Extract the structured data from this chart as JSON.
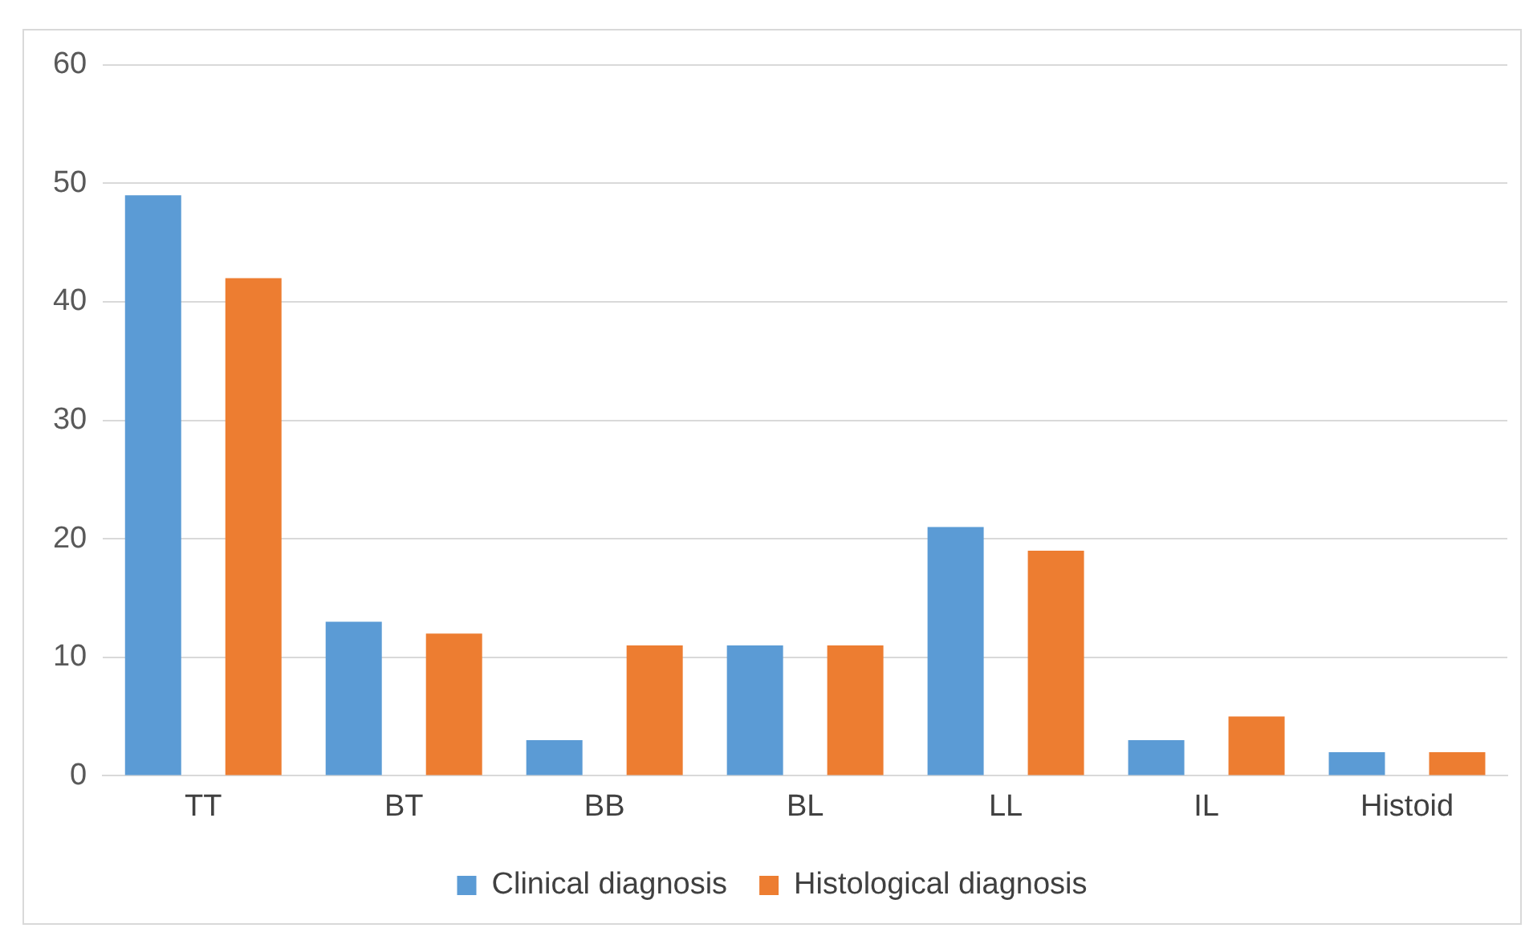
{
  "chart_data": {
    "type": "bar",
    "categories": [
      "TT",
      "BT",
      "BB",
      "BL",
      "LL",
      "IL",
      "Histoid"
    ],
    "series": [
      {
        "name": "Clinical diagnosis",
        "color": "#5b9bd5",
        "values": [
          49,
          13,
          3,
          11,
          21,
          3,
          2
        ]
      },
      {
        "name": "Histological diagnosis",
        "color": "#ed7d31",
        "values": [
          42,
          12,
          11,
          11,
          19,
          5,
          2
        ]
      }
    ],
    "ylim": [
      0,
      60
    ],
    "yticks": [
      0,
      10,
      20,
      30,
      40,
      50,
      60
    ],
    "grid": "y",
    "legend": "bottom"
  }
}
